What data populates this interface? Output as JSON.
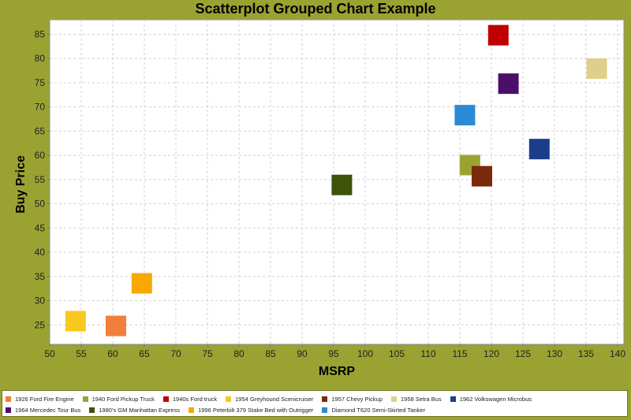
{
  "chart_data": {
    "type": "scatter",
    "title": "Scatterplot Grouped Chart Example",
    "xlabel": "MSRP",
    "ylabel": "Buy Price",
    "xlim": [
      50,
      141
    ],
    "ylim": [
      21,
      88
    ],
    "xticks": [
      50,
      55,
      60,
      65,
      70,
      75,
      80,
      85,
      90,
      95,
      100,
      105,
      110,
      115,
      120,
      125,
      130,
      135,
      140
    ],
    "yticks": [
      25,
      30,
      35,
      40,
      45,
      50,
      55,
      60,
      65,
      70,
      75,
      80,
      85
    ],
    "grid": true,
    "legend_position": "bottom",
    "series": [
      {
        "name": "1926 Ford Fire Engine",
        "color": "#f07f3c",
        "x": [
          60.5
        ],
        "y": [
          24.8
        ]
      },
      {
        "name": "1940 Ford Pickup Truck",
        "color": "#9aa332",
        "x": [
          116.6
        ],
        "y": [
          58.0
        ]
      },
      {
        "name": "1940s Ford truck",
        "color": "#c00000",
        "x": [
          121.1
        ],
        "y": [
          84.8
        ]
      },
      {
        "name": "1954 Greyhound Scenicruiser",
        "color": "#f8c81f",
        "x": [
          54.1
        ],
        "y": [
          25.8
        ]
      },
      {
        "name": "1957 Chevy Pickup",
        "color": "#7a2a0a",
        "x": [
          118.5
        ],
        "y": [
          55.7
        ]
      },
      {
        "name": "1958 Setra Bus",
        "color": "#e0cf8c",
        "x": [
          136.7
        ],
        "y": [
          77.9
        ]
      },
      {
        "name": "1962 Volkswagen Microbus",
        "color": "#1b3d8a",
        "x": [
          127.6
        ],
        "y": [
          61.3
        ]
      },
      {
        "name": "1964 Mercedec Tour Bus",
        "color": "#4b0f6b",
        "x": [
          122.7
        ],
        "y": [
          74.8
        ]
      },
      {
        "name": "1980’s GM Manhattan Express",
        "color": "#3e5209",
        "x": [
          96.3
        ],
        "y": [
          53.9
        ]
      },
      {
        "name": "1996 Peterbilt 379 Stake Bed with Outrigger",
        "color": "#f8a800",
        "x": [
          64.6
        ],
        "y": [
          33.6
        ]
      },
      {
        "name": "Diamond T620 Semi-Skirted Tanker",
        "color": "#2a8ad6",
        "x": [
          115.8
        ],
        "y": [
          68.3
        ]
      }
    ]
  }
}
